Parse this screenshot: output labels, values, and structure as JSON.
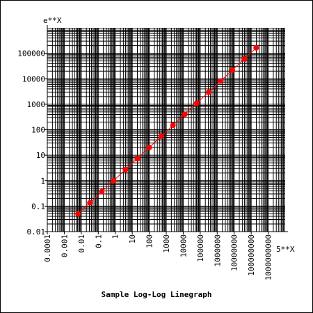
{
  "chart_data": {
    "type": "line",
    "title": "Sample Log-Log Linegraph",
    "xlabel": "5**X",
    "ylabel": "e**X",
    "x_scale": "log",
    "y_scale": "log",
    "xlim": [
      0.0001,
      10000000000
    ],
    "ylim": [
      0.01,
      1000000
    ],
    "grid": true,
    "x_tick_labels": [
      "0.0001",
      "0.001",
      "0.01",
      "0.1",
      "1",
      "10",
      "100",
      "1000",
      "10000",
      "100000",
      "1000000",
      "10000000",
      "100000000",
      "1000000000"
    ],
    "y_tick_labels": [
      "0.01",
      "0.1",
      "1",
      "10",
      "100",
      "1000",
      "10000",
      "100000"
    ],
    "series": [
      {
        "color": "#ff0000",
        "x": [
          0.0064,
          0.032,
          0.16,
          0.8,
          4,
          20,
          100,
          500,
          2500,
          12500,
          62500,
          312500,
          1562500,
          7812500,
          39062500,
          195312500
        ],
        "y": [
          0.05,
          0.135,
          0.37,
          1.0,
          2.72,
          7.4,
          20.1,
          55,
          150,
          403,
          1100,
          2980,
          8100,
          22000,
          60000,
          163000
        ]
      }
    ]
  }
}
